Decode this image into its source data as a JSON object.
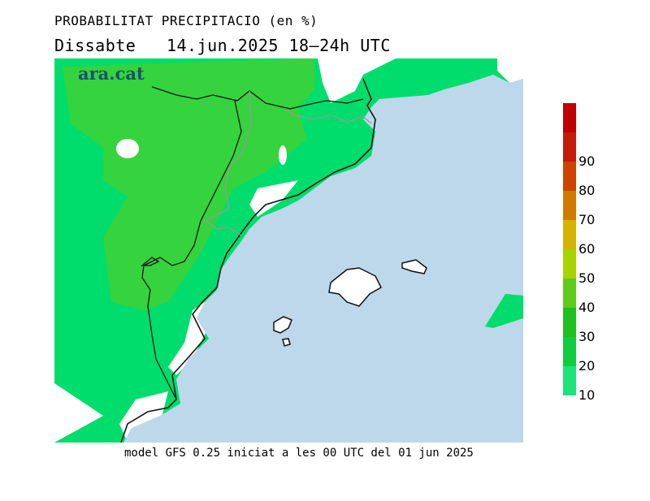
{
  "header": {
    "title": "PROBABILITAT PRECIPITACIO (en %)",
    "subtitle": "Dissabte   14.jun.2025 18–24h UTC"
  },
  "logo": {
    "text": "ara.cat"
  },
  "footer": {
    "text": "model GFS 0.25 iniciat a les 00 UTC del 01 jun 2025"
  },
  "legend": {
    "levels": [
      {
        "label": "",
        "color": "#c00000"
      },
      {
        "label": "90",
        "color": "#c41a0a"
      },
      {
        "label": "80",
        "color": "#cc4400"
      },
      {
        "label": "70",
        "color": "#d07a00"
      },
      {
        "label": "60",
        "color": "#d4b400"
      },
      {
        "label": "50",
        "color": "#a8d200"
      },
      {
        "label": "40",
        "color": "#5ecb1a"
      },
      {
        "label": "30",
        "color": "#20c020"
      },
      {
        "label": "20",
        "color": "#10cc40"
      },
      {
        "label": "10",
        "color": "#1ee27a"
      }
    ]
  },
  "map": {
    "colors": {
      "sea": "#bcd8ea",
      "land_low": "#00dd6c",
      "land_mid": "#35d33d",
      "no_data": "#ffffff",
      "coast": "#111111",
      "border": "#999999"
    }
  }
}
